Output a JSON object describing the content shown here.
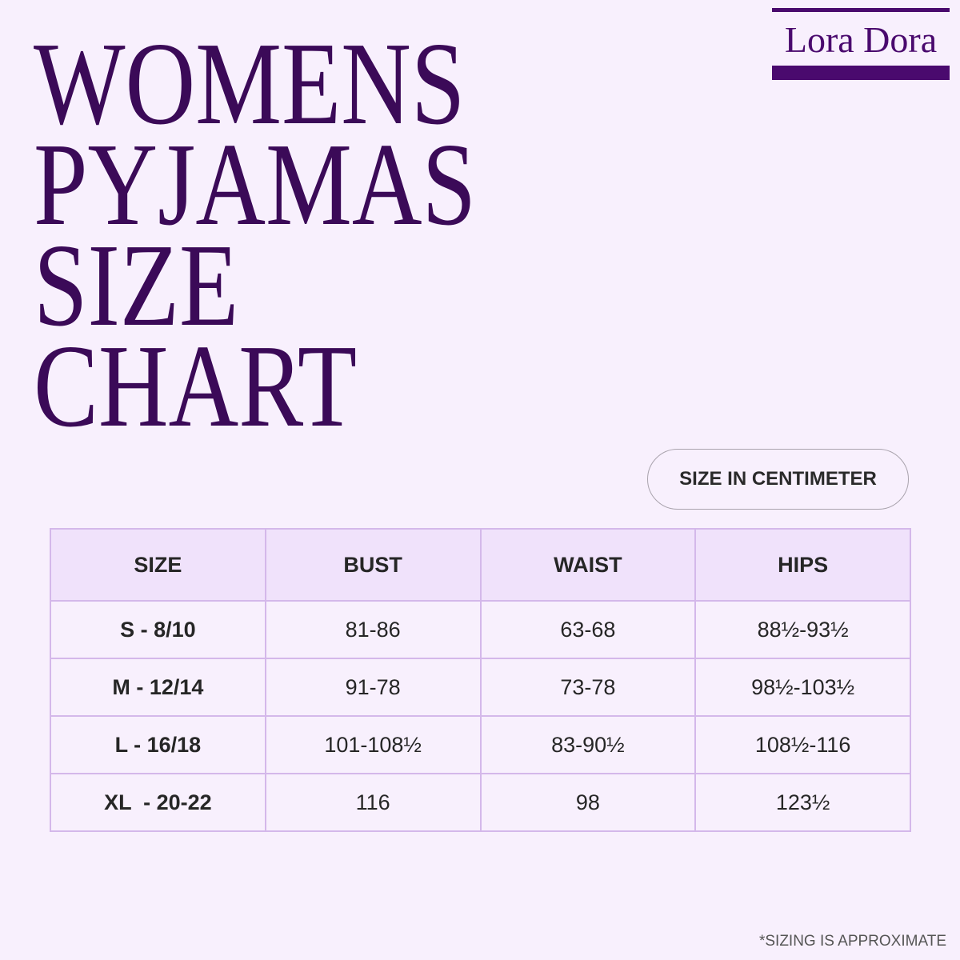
{
  "brand": "Lora Dora",
  "title": [
    "WOMENS",
    "PYJAMAS",
    "SIZE",
    "CHART"
  ],
  "badge": "SIZE IN CENTIMETER",
  "table": {
    "header": [
      "SIZE",
      "BUST",
      "WAIST",
      "HIPS"
    ],
    "rows": [
      [
        "S - 8/10",
        "81-86",
        "63-68",
        "88½-93½"
      ],
      [
        "M - 12/14",
        "91-78",
        "73-78",
        "98½-103½"
      ],
      [
        "L - 16/18",
        "101-108½",
        "83-90½",
        "108½-116"
      ],
      [
        "XL  - 20-22",
        "116",
        "98",
        "123½"
      ]
    ]
  },
  "footnote": "*SIZING IS APPROXIMATE"
}
